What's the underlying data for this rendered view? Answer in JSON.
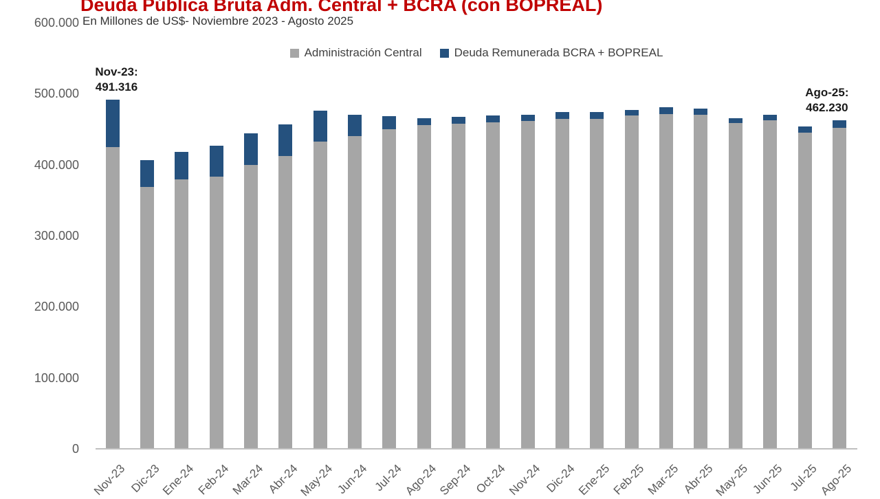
{
  "header": {
    "title": "Deuda Pública Bruta Adm. Central + BCRA (con BOPREAL)",
    "subtitle": "En Millones de US$- Noviembre 2023 - Agosto 2025"
  },
  "legend": {
    "items": [
      {
        "label": "Administración Central",
        "color": "#A6A6A6"
      },
      {
        "label": "Deuda Remunerada BCRA + BOPREAL",
        "color": "#25517E"
      }
    ]
  },
  "annotations": [
    {
      "label": "Nov-23:",
      "value": "491.316",
      "category": "Nov-23"
    },
    {
      "label": "Ago-25:",
      "value": "462.230",
      "category": "Ago-25"
    }
  ],
  "chart_data": {
    "type": "bar",
    "stacked": true,
    "title": "Deuda Pública Bruta Adm. Central + BCRA (con BOPREAL)",
    "subtitle": "En Millones de US$- Noviembre 2023 - Agosto 2025",
    "unit": "Millones de US$",
    "categories": [
      "Nov-23",
      "Dic-23",
      "Ene-24",
      "Feb-24",
      "Mar-24",
      "Abr-24",
      "May-24",
      "Jun-24",
      "Jul-24",
      "Ago-24",
      "Sep-24",
      "Oct-24",
      "Nov-24",
      "Dic-24",
      "Ene-25",
      "Feb-25",
      "Mar-25",
      "Abr-25",
      "May-25",
      "Jun-25",
      "Jul-25",
      "Ago-25"
    ],
    "series": [
      {
        "name": "Administración Central",
        "color": "#A6A6A6",
        "values": [
          425300,
          369000,
          379000,
          383500,
          400000,
          412000,
          433000,
          440000,
          450000,
          456000,
          457500,
          459500,
          461500,
          464500,
          464500,
          469000,
          471500,
          470500,
          458500,
          462500,
          445000,
          452000
        ]
      },
      {
        "name": "Deuda Remunerada BCRA + BOPREAL",
        "color": "#25517E",
        "values": [
          66016,
          37500,
          39000,
          43500,
          44500,
          44500,
          43500,
          30000,
          18500,
          9500,
          9500,
          9500,
          9000,
          9500,
          9500,
          8000,
          9500,
          8500,
          7000,
          8000,
          9000,
          10230
        ]
      }
    ],
    "labeled_totals": {
      "Nov-23": 491316,
      "Ago-25": 462230
    },
    "ylim": [
      0,
      600000
    ],
    "yticks": [
      {
        "label": "0",
        "value": 0
      },
      {
        "label": "100.000",
        "value": 100000
      },
      {
        "label": "200.000",
        "value": 200000
      },
      {
        "label": "300.000",
        "value": 300000
      },
      {
        "label": "400.000",
        "value": 400000
      },
      {
        "label": "500.000",
        "value": 500000
      },
      {
        "label": "600.000",
        "value": 600000
      }
    ],
    "grid": false,
    "legend_position": "top"
  }
}
